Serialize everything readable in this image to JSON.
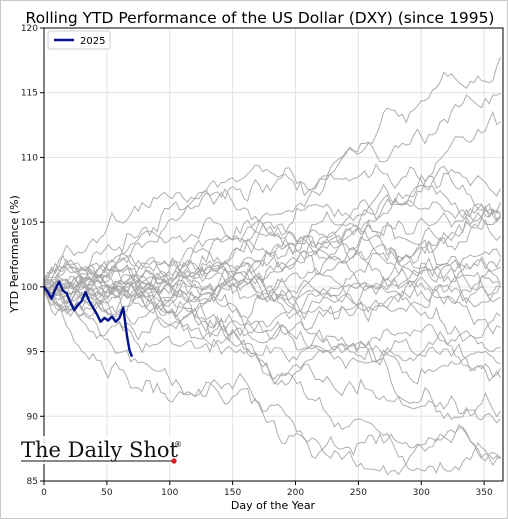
{
  "chart_data": {
    "type": "line",
    "title": "Rolling YTD Performance of the US Dollar (DXY) (since 1995)",
    "xlabel": "Day of the Year",
    "ylabel": "YTD Performance (%)",
    "xlim": [
      0,
      365
    ],
    "ylim": [
      85,
      120
    ],
    "x_ticks": [
      0,
      50,
      100,
      150,
      200,
      250,
      300,
      350
    ],
    "y_ticks": [
      85,
      90,
      95,
      100,
      105,
      110,
      115,
      120
    ],
    "grid": true,
    "legend": {
      "placement": "top-left",
      "entries": [
        "2025"
      ]
    },
    "highlight_series": {
      "name": "2025",
      "color": "#00138a",
      "points": [
        [
          0,
          100.0
        ],
        [
          3,
          99.6
        ],
        [
          6,
          99.1
        ],
        [
          9,
          99.8
        ],
        [
          12,
          100.4
        ],
        [
          15,
          99.7
        ],
        [
          18,
          99.5
        ],
        [
          21,
          98.8
        ],
        [
          24,
          98.2
        ],
        [
          27,
          98.6
        ],
        [
          30,
          98.9
        ],
        [
          33,
          99.6
        ],
        [
          36,
          98.9
        ],
        [
          39,
          98.4
        ],
        [
          42,
          97.9
        ],
        [
          45,
          97.3
        ],
        [
          48,
          97.6
        ],
        [
          51,
          97.4
        ],
        [
          54,
          97.7
        ],
        [
          57,
          97.3
        ],
        [
          60,
          97.6
        ],
        [
          63,
          98.4
        ],
        [
          66,
          96.2
        ],
        [
          68,
          95.1
        ],
        [
          70,
          94.6
        ]
      ]
    },
    "background_series_count": 30,
    "background_color": "#a6a6a6"
  },
  "branding": {
    "logo_text": "The Daily Shot",
    "logo_mark": "®"
  }
}
